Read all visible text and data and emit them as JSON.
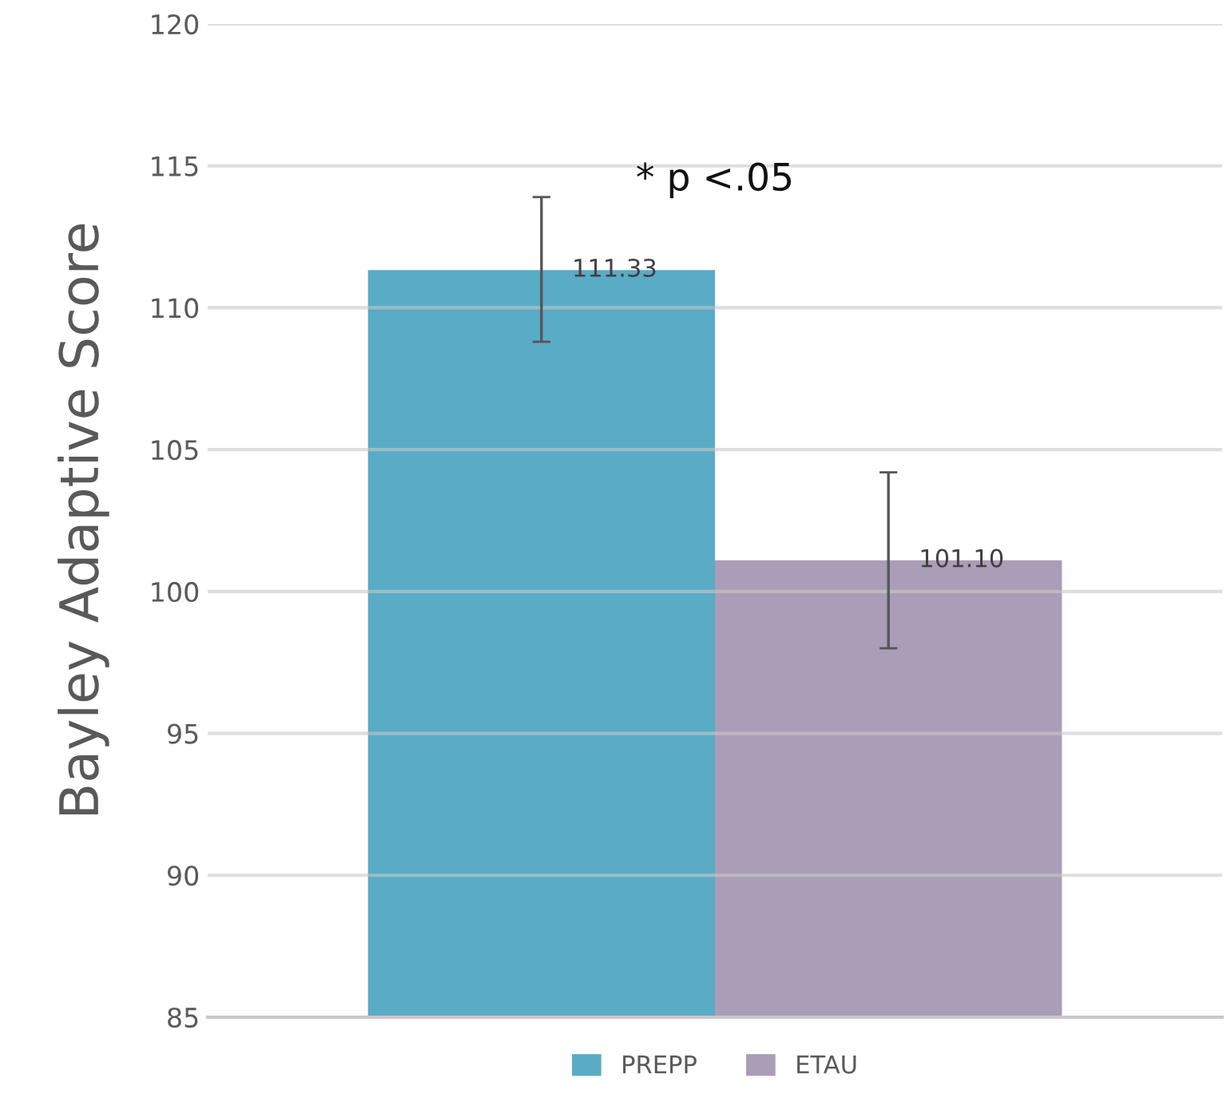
{
  "chart_data": {
    "type": "bar",
    "ylabel": "Bayley Adaptive Score",
    "categories": [
      null
    ],
    "series": [
      {
        "name": "PREPP",
        "color": "#5aabc6",
        "values": [
          111.33
        ],
        "errors": [
          [
            108.8,
            113.9
          ]
        ],
        "value_labels": [
          "111.33"
        ]
      },
      {
        "name": "ETAU",
        "color": "#aa9db7",
        "values": [
          101.1
        ],
        "errors": [
          [
            98.0,
            104.2
          ]
        ],
        "value_labels": [
          "101.10"
        ]
      }
    ],
    "ylim": [
      85,
      120
    ],
    "yticks": [
      85,
      90,
      95,
      100,
      105,
      110,
      115,
      120
    ],
    "grid": "y",
    "legend": "bottom",
    "annotations": [
      "* p <.05"
    ]
  }
}
